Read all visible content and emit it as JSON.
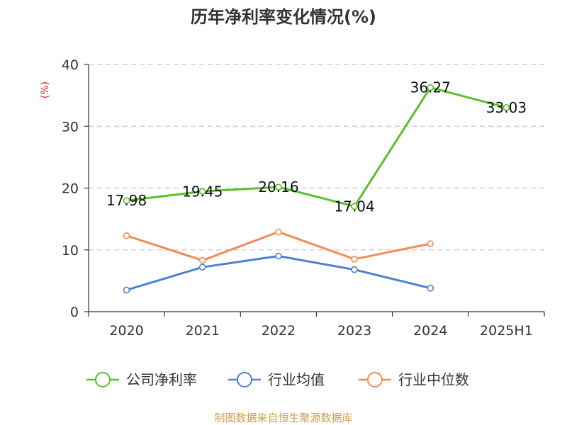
{
  "chart_data": {
    "type": "line",
    "title": "历年净利率变化情况(%)",
    "ylabel": "(%)",
    "xlabel": "",
    "categories": [
      "2020",
      "2021",
      "2022",
      "2023",
      "2024",
      "2025H1"
    ],
    "ylim": [
      0,
      40
    ],
    "yticks": [
      0,
      10,
      20,
      30,
      40
    ],
    "grid": true,
    "legend_position": "bottom",
    "series": [
      {
        "name": "公司净利率",
        "color": "#5cbf2a",
        "show_labels": true,
        "values": [
          17.98,
          19.45,
          20.16,
          17.04,
          36.27,
          33.03
        ]
      },
      {
        "name": "行业均值",
        "color": "#4f7fd5",
        "show_labels": false,
        "values": [
          3.5,
          7.2,
          9.0,
          6.8,
          3.8,
          null
        ]
      },
      {
        "name": "行业中位数",
        "color": "#f28c57",
        "show_labels": false,
        "values": [
          12.3,
          8.3,
          12.9,
          8.5,
          11.0,
          null
        ]
      }
    ],
    "source": "制图数据来自恒生聚源数据库"
  }
}
